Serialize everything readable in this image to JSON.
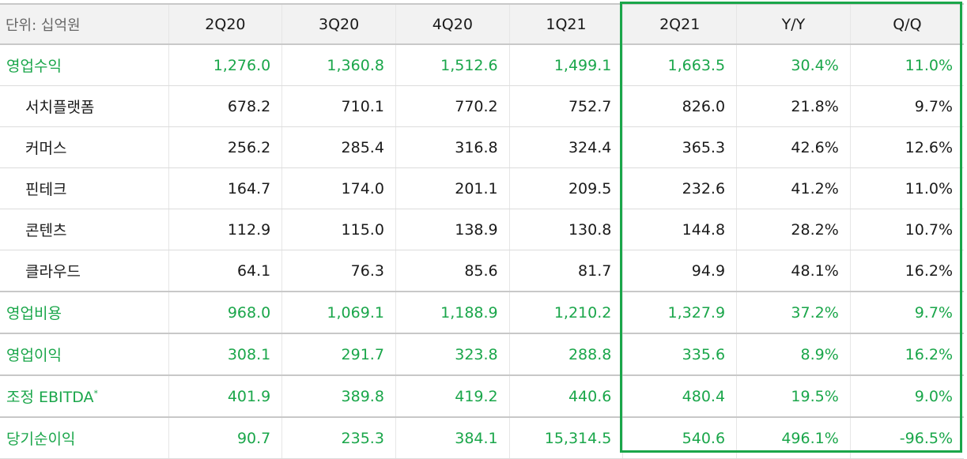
{
  "header": {
    "unit_label": "단위: 십억원",
    "columns": [
      "2Q20",
      "3Q20",
      "4Q20",
      "1Q21",
      "2Q21",
      "Y/Y",
      "Q/Q"
    ]
  },
  "colors": {
    "accent_green": "#1aa64a",
    "text": "#1a1a1a",
    "header_bg": "#f2f2f2"
  },
  "rows": [
    {
      "label": "영업수익",
      "values": [
        "1,276.0",
        "1,360.8",
        "1,512.6",
        "1,499.1",
        "1,663.5",
        "30.4%",
        "11.0%"
      ]
    },
    {
      "label": "서치플랫폼",
      "values": [
        "678.2",
        "710.1",
        "770.2",
        "752.7",
        "826.0",
        "21.8%",
        "9.7%"
      ]
    },
    {
      "label": "커머스",
      "values": [
        "256.2",
        "285.4",
        "316.8",
        "324.4",
        "365.3",
        "42.6%",
        "12.6%"
      ]
    },
    {
      "label": "핀테크",
      "values": [
        "164.7",
        "174.0",
        "201.1",
        "209.5",
        "232.6",
        "41.2%",
        "11.0%"
      ]
    },
    {
      "label": "콘텐츠",
      "values": [
        "112.9",
        "115.0",
        "138.9",
        "130.8",
        "144.8",
        "28.2%",
        "10.7%"
      ]
    },
    {
      "label": "클라우드",
      "values": [
        "64.1",
        "76.3",
        "85.6",
        "81.7",
        "94.9",
        "48.1%",
        "16.2%"
      ]
    },
    {
      "label": "영업비용",
      "values": [
        "968.0",
        "1,069.1",
        "1,188.9",
        "1,210.2",
        "1,327.9",
        "37.2%",
        "9.7%"
      ]
    },
    {
      "label": "영업이익",
      "values": [
        "308.1",
        "291.7",
        "323.8",
        "288.8",
        "335.6",
        "8.9%",
        "16.2%"
      ]
    },
    {
      "label": "조정 EBITDA",
      "mark": "*",
      "values": [
        "401.9",
        "389.8",
        "419.2",
        "440.6",
        "480.4",
        "19.5%",
        "9.0%"
      ]
    },
    {
      "label": "당기순이익",
      "values": [
        "90.7",
        "235.3",
        "384.1",
        "15,314.5",
        "540.6",
        "496.1%",
        "-96.5%"
      ]
    }
  ]
}
